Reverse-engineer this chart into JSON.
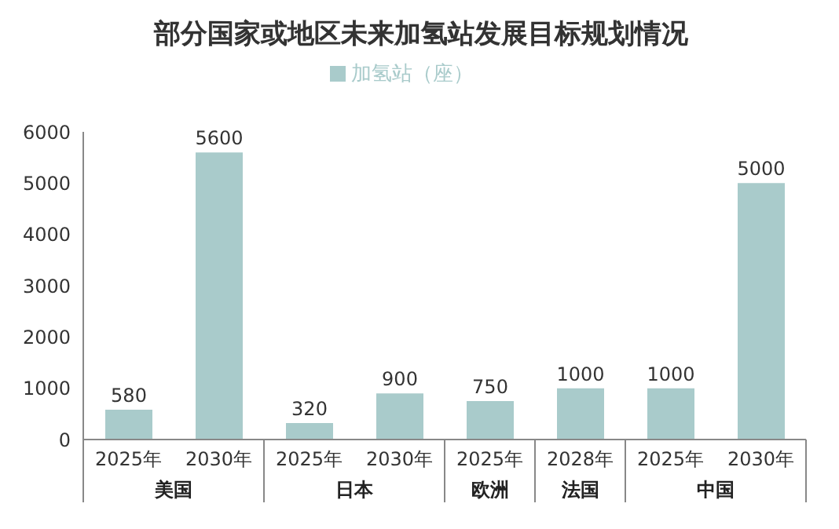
{
  "chart_data": {
    "type": "bar",
    "title": "部分国家或地区未来加氢站发展目标规划情况",
    "categories": [
      "2025年",
      "2030年",
      "2025年",
      "2030年",
      "2025年",
      "2028年",
      "2025年",
      "2030年"
    ],
    "series": [
      {
        "name": "加氢站（座）",
        "color": "#a9cbcb",
        "values": [
          580,
          5600,
          320,
          900,
          750,
          1000,
          1000,
          5000
        ]
      }
    ],
    "ylim": [
      0,
      6000
    ],
    "yticks": [
      0,
      1000,
      2000,
      3000,
      4000,
      5000,
      6000
    ],
    "data_labels": true,
    "legend": "top",
    "annotations": [
      "美国",
      "日本",
      "欧洲",
      "法国",
      "中国"
    ]
  }
}
